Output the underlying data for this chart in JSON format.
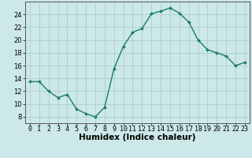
{
  "x": [
    0,
    1,
    2,
    3,
    4,
    5,
    6,
    7,
    8,
    9,
    10,
    11,
    12,
    13,
    14,
    15,
    16,
    17,
    18,
    19,
    20,
    21,
    22,
    23
  ],
  "y": [
    13.5,
    13.5,
    12.0,
    11.0,
    11.5,
    9.2,
    8.5,
    8.0,
    9.5,
    15.5,
    19.0,
    21.2,
    21.8,
    24.1,
    24.5,
    25.0,
    24.2,
    22.8,
    20.0,
    18.5,
    18.0,
    17.5,
    16.0,
    16.5
  ],
  "line_color": "#1a7a6e",
  "marker": "D",
  "marker_size": 2.0,
  "bg_color": "#cce8e8",
  "grid_color": "#aacece",
  "xlabel": "Humidex (Indice chaleur)",
  "ylim": [
    7,
    26
  ],
  "xlim": [
    -0.5,
    23.5
  ],
  "yticks": [
    8,
    10,
    12,
    14,
    16,
    18,
    20,
    22,
    24
  ],
  "xticks": [
    0,
    1,
    2,
    3,
    4,
    5,
    6,
    7,
    8,
    9,
    10,
    11,
    12,
    13,
    14,
    15,
    16,
    17,
    18,
    19,
    20,
    21,
    22,
    23
  ],
  "tick_fontsize": 6.0,
  "xlabel_fontsize": 7.5,
  "line_width": 1.0
}
